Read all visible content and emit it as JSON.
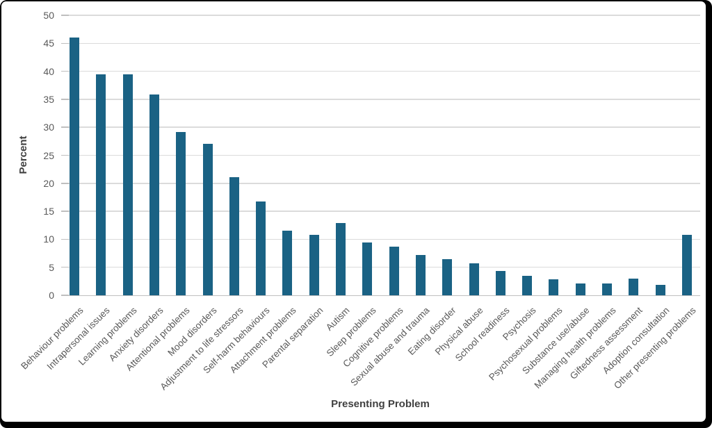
{
  "chart_data": {
    "type": "bar",
    "title": "",
    "xlabel": "Presenting Problem",
    "ylabel": "Percent",
    "ylim": [
      0,
      50
    ],
    "yticks": [
      0,
      5,
      10,
      15,
      20,
      25,
      30,
      35,
      40,
      45,
      50
    ],
    "grid": true,
    "legend": "none",
    "categories": [
      "Behaviour problems",
      "Intrapersonal issues",
      "Learning problems",
      "Anxiety disorders",
      "Attentional problems",
      "Mood disorders",
      "Adjustment to life stressors",
      "Self-harm behaviours",
      "Attachment problems",
      "Parental separation",
      "Autism",
      "Sleep problems",
      "Cognitive problems",
      "Sexual abuse and trauma",
      "Eating disorder",
      "Physical abuse",
      "School readiness",
      "Psychosis",
      "Psychosexual problems",
      "Substance use/abuse",
      "Managing health problems",
      "Giftedness assessment",
      "Adoption consultation",
      "Other presenting problems"
    ],
    "values": [
      46.0,
      39.4,
      39.4,
      35.8,
      29.2,
      27.0,
      21.1,
      16.7,
      11.6,
      10.8,
      12.9,
      9.4,
      8.7,
      7.2,
      6.5,
      5.7,
      4.3,
      3.5,
      2.8,
      2.1,
      2.1,
      3.0,
      1.9,
      10.8
    ],
    "colors": {
      "bar": "#1a6284",
      "gridline": "#dbdbdb",
      "axis_line": "#bfbfbf",
      "tick_label": "#595959",
      "axis_title": "#404040",
      "frame": "#000000",
      "background": "#ffffff"
    }
  }
}
